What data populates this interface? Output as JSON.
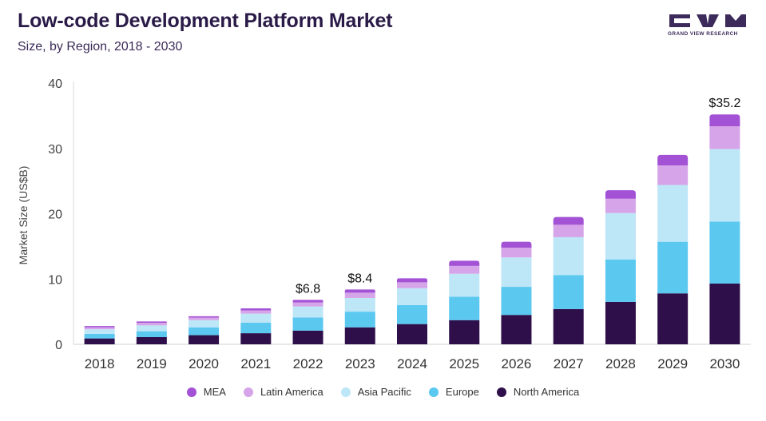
{
  "header": {
    "title": "Low-code Development Platform Market",
    "subtitle": "Size, by Region, 2018 - 2030"
  },
  "brand": {
    "logo_text": "GRAND VIEW RESEARCH",
    "color": "#3b2a5a"
  },
  "colors": {
    "North America": "#2e0f4a",
    "Europe": "#5bc8f0",
    "Asia Pacific": "#bde6f7",
    "Latin America": "#d6a4e8",
    "MEA": "#a352d6"
  },
  "chart_data": {
    "type": "bar",
    "stacked": true,
    "title": "Low-code Development Platform Market",
    "subtitle": "Size, by Region, 2018 - 2030",
    "xlabel": "",
    "ylabel": "Market Size (US$B)",
    "ylim": [
      0,
      40
    ],
    "yticks": [
      0,
      10,
      20,
      30,
      40
    ],
    "grid": false,
    "legend_position": "bottom",
    "categories": [
      "2018",
      "2019",
      "2020",
      "2021",
      "2022",
      "2023",
      "2024",
      "2025",
      "2026",
      "2027",
      "2028",
      "2029",
      "2030"
    ],
    "series": [
      {
        "name": "North America",
        "values": [
          0.9,
          1.1,
          1.4,
          1.7,
          2.1,
          2.6,
          3.1,
          3.7,
          4.5,
          5.4,
          6.5,
          7.8,
          9.3
        ]
      },
      {
        "name": "Europe",
        "values": [
          0.7,
          0.9,
          1.2,
          1.6,
          2.0,
          2.4,
          2.9,
          3.6,
          4.3,
          5.2,
          6.5,
          7.9,
          9.5
        ]
      },
      {
        "name": "Asia Pacific",
        "values": [
          0.7,
          0.9,
          1.1,
          1.4,
          1.7,
          2.1,
          2.6,
          3.5,
          4.5,
          5.8,
          7.1,
          8.7,
          11.1
        ]
      },
      {
        "name": "Latin America",
        "values": [
          0.3,
          0.4,
          0.4,
          0.5,
          0.6,
          0.8,
          0.9,
          1.2,
          1.5,
          1.9,
          2.2,
          3.0,
          3.5
        ]
      },
      {
        "name": "MEA",
        "values": [
          0.2,
          0.2,
          0.2,
          0.3,
          0.4,
          0.5,
          0.6,
          0.8,
          0.9,
          1.2,
          1.3,
          1.6,
          1.8
        ]
      }
    ],
    "annotations": [
      {
        "category": "2022",
        "text": "$6.8"
      },
      {
        "category": "2023",
        "text": "$8.4"
      },
      {
        "category": "2030",
        "text": "$35.2"
      }
    ],
    "legend_order": [
      "MEA",
      "Latin America",
      "Asia Pacific",
      "Europe",
      "North America"
    ]
  }
}
